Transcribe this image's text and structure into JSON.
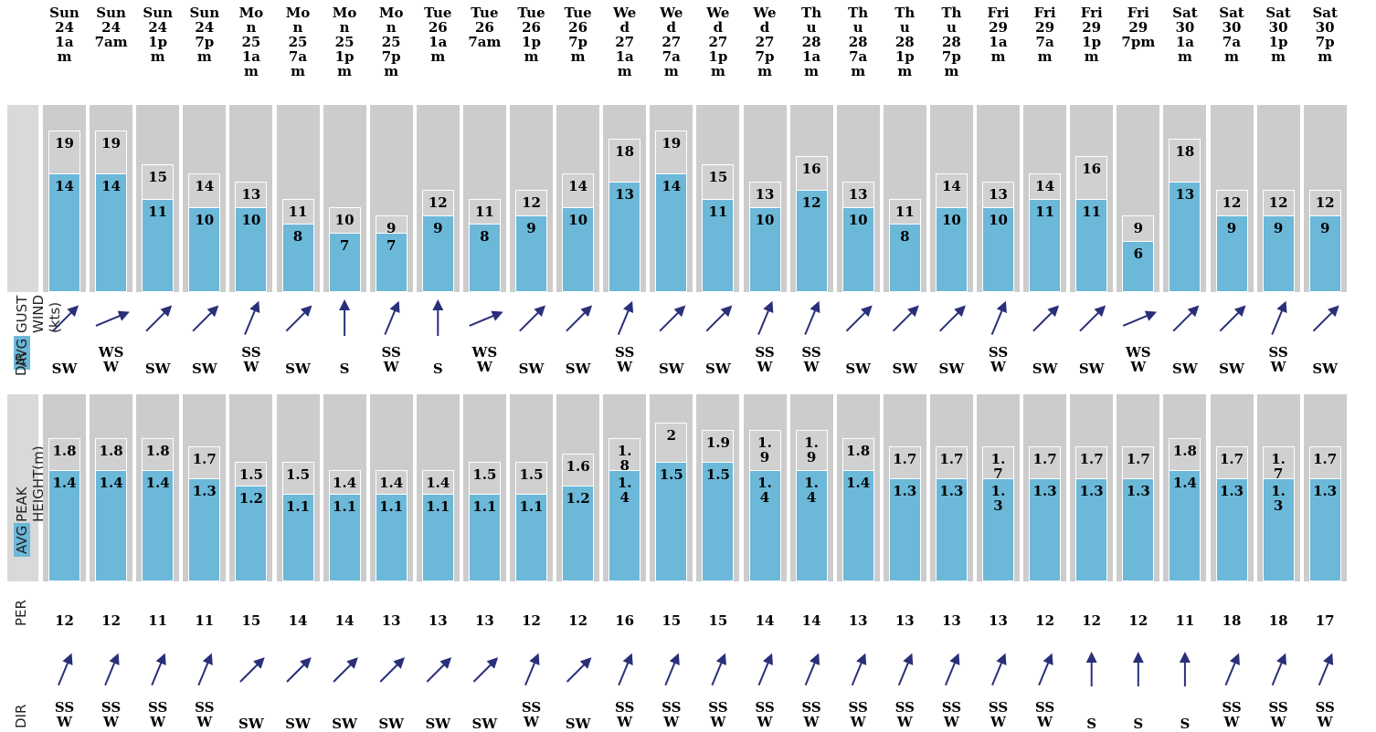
{
  "row_labels": {
    "avg": "AVG",
    "gust_wind": "GUST WIND (kts)",
    "peak_height": "PEAK HEIGHT(m)",
    "dir": "DIR",
    "per": "PER"
  },
  "colors": {
    "avg": "#6bb8d9",
    "max": "#cccccc",
    "arrow": "#2a2f7a"
  },
  "chart_data": [
    {
      "type": "bar",
      "ylabel": "AVG GUST WIND (kts)",
      "categories": [
        "Sun\n24\n1a\nm",
        "Sun\n24\n7am",
        "Sun\n24\n1p\nm",
        "Sun\n24\n7p\nm",
        "Mo\nn\n25\n1a\nm",
        "Mo\nn\n25\n7a\nm",
        "Mo\nn\n25\n1p\nm",
        "Mo\nn\n25\n7p\nm",
        "Tue\n26\n1a\nm",
        "Tue\n26\n7am",
        "Tue\n26\n1p\nm",
        "Tue\n26\n7p\nm",
        "We\nd\n27\n1a\nm",
        "We\nd\n27\n7a\nm",
        "We\nd\n27\n1p\nm",
        "We\nd\n27\n7p\nm",
        "Th\nu\n28\n1a\nm",
        "Th\nu\n28\n7a\nm",
        "Th\nu\n28\n1p\nm",
        "Th\nu\n28\n7p\nm",
        "Fri\n29\n1a\nm",
        "Fri\n29\n7a\nm",
        "Fri\n29\n1p\nm",
        "Fri\n29\n7pm",
        "Sat\n30\n1a\nm",
        "Sat\n30\n7a\nm",
        "Sat\n30\n1p\nm",
        "Sat\n30\n7p\nm"
      ],
      "series": [
        {
          "name": "AVG",
          "values": [
            14,
            14,
            11,
            10,
            10,
            8,
            7,
            7,
            9,
            8,
            9,
            10,
            13,
            14,
            11,
            10,
            12,
            10,
            8,
            10,
            10,
            11,
            11,
            6,
            13,
            9,
            9,
            9
          ],
          "labels": [
            "14",
            "14",
            "11",
            "10",
            "10",
            "8",
            "7",
            "7",
            "9",
            "8",
            "9",
            "10",
            "13",
            "14",
            "11",
            "10",
            "12",
            "10",
            "8",
            "10",
            "10",
            "11",
            "11",
            "6",
            "13",
            "9",
            "9",
            "9"
          ]
        },
        {
          "name": "GUST",
          "values": [
            19,
            19,
            15,
            14,
            13,
            11,
            10,
            9,
            12,
            11,
            12,
            14,
            18,
            19,
            15,
            13,
            16,
            13,
            11,
            14,
            13,
            14,
            16,
            9,
            18,
            12,
            12,
            12
          ],
          "labels": [
            "19",
            "19",
            "15",
            "14",
            "13",
            "11",
            "10",
            "9",
            "12",
            "11",
            "12",
            "14",
            "18",
            "19",
            "15",
            "13",
            "16",
            "13",
            "11",
            "14",
            "13",
            "14",
            "16",
            "9",
            "18",
            "12",
            "12",
            "12"
          ]
        }
      ],
      "directions": [
        {
          "label": "SW",
          "deg": 225
        },
        {
          "label": "WS\nW",
          "deg": 247.5
        },
        {
          "label": "SW",
          "deg": 225
        },
        {
          "label": "SW",
          "deg": 225
        },
        {
          "label": "SS\nW",
          "deg": 202.5
        },
        {
          "label": "SW",
          "deg": 225
        },
        {
          "label": "S",
          "deg": 180
        },
        {
          "label": "SS\nW",
          "deg": 202.5
        },
        {
          "label": "S",
          "deg": 180
        },
        {
          "label": "WS\nW",
          "deg": 247.5
        },
        {
          "label": "SW",
          "deg": 225
        },
        {
          "label": "SW",
          "deg": 225
        },
        {
          "label": "SS\nW",
          "deg": 202.5
        },
        {
          "label": "SW",
          "deg": 225
        },
        {
          "label": "SW",
          "deg": 225
        },
        {
          "label": "SS\nW",
          "deg": 202.5
        },
        {
          "label": "SS\nW",
          "deg": 202.5
        },
        {
          "label": "SW",
          "deg": 225
        },
        {
          "label": "SW",
          "deg": 225
        },
        {
          "label": "SW",
          "deg": 225
        },
        {
          "label": "SS\nW",
          "deg": 202.5
        },
        {
          "label": "SW",
          "deg": 225
        },
        {
          "label": "SW",
          "deg": 225
        },
        {
          "label": "WS\nW",
          "deg": 247.5
        },
        {
          "label": "SW",
          "deg": 225
        },
        {
          "label": "SW",
          "deg": 225
        },
        {
          "label": "SS\nW",
          "deg": 202.5
        },
        {
          "label": "SW",
          "deg": 225
        }
      ]
    },
    {
      "type": "bar",
      "ylabel": "AVG PEAK HEIGHT(m)",
      "categories": [
        "Sun\n24\n1a\nm",
        "Sun\n24\n7am",
        "Sun\n24\n1p\nm",
        "Sun\n24\n7p\nm",
        "Mo\nn\n25\n1a\nm",
        "Mo\nn\n25\n7a\nm",
        "Mo\nn\n25\n1p\nm",
        "Mo\nn\n25\n7p\nm",
        "Tue\n26\n1a\nm",
        "Tue\n26\n7am",
        "Tue\n26\n1p\nm",
        "Tue\n26\n7p\nm",
        "We\nd\n27\n1a\nm",
        "We\nd\n27\n7a\nm",
        "We\nd\n27\n1p\nm",
        "We\nd\n27\n7p\nm",
        "Th\nu\n28\n1a\nm",
        "Th\nu\n28\n7a\nm",
        "Th\nu\n28\n1p\nm",
        "Th\nu\n28\n7p\nm",
        "Fri\n29\n1a\nm",
        "Fri\n29\n7a\nm",
        "Fri\n29\n1p\nm",
        "Fri\n29\n7pm",
        "Sat\n30\n1a\nm",
        "Sat\n30\n7a\nm",
        "Sat\n30\n1p\nm",
        "Sat\n30\n7p\nm"
      ],
      "series": [
        {
          "name": "AVG",
          "values": [
            1.4,
            1.4,
            1.4,
            1.3,
            1.2,
            1.1,
            1.1,
            1.1,
            1.1,
            1.1,
            1.1,
            1.2,
            1.4,
            1.5,
            1.5,
            1.4,
            1.4,
            1.4,
            1.3,
            1.3,
            1.3,
            1.3,
            1.3,
            1.3,
            1.4,
            1.3,
            1.3,
            1.3
          ],
          "labels": [
            "1.4",
            "1.4",
            "1.4",
            "1.3",
            "1.2",
            "1.1",
            "1.1",
            "1.1",
            "1.1",
            "1.1",
            "1.1",
            "1.2",
            "1.\n4",
            "1.5",
            "1.5",
            "1.\n4",
            "1.\n4",
            "1.4",
            "1.3",
            "1.3",
            "1.\n3",
            "1.3",
            "1.3",
            "1.3",
            "1.4",
            "1.3",
            "1.\n3",
            "1.3"
          ]
        },
        {
          "name": "PEAK",
          "values": [
            1.8,
            1.8,
            1.8,
            1.7,
            1.5,
            1.5,
            1.4,
            1.4,
            1.4,
            1.5,
            1.5,
            1.6,
            1.8,
            2,
            1.9,
            1.9,
            1.9,
            1.8,
            1.7,
            1.7,
            1.7,
            1.7,
            1.7,
            1.7,
            1.8,
            1.7,
            1.7,
            1.7
          ],
          "labels": [
            "1.8",
            "1.8",
            "1.8",
            "1.7",
            "1.5",
            "1.5",
            "1.4",
            "1.4",
            "1.4",
            "1.5",
            "1.5",
            "1.6",
            "1.\n8",
            "2",
            "1.9",
            "1.\n9",
            "1.\n9",
            "1.8",
            "1.7",
            "1.7",
            "1.\n7",
            "1.7",
            "1.7",
            "1.7",
            "1.8",
            "1.7",
            "1.\n7",
            "1.7"
          ]
        }
      ],
      "periods": [
        "12",
        "12",
        "11",
        "11",
        "15",
        "14",
        "14",
        "13",
        "13",
        "13",
        "12",
        "12",
        "16",
        "15",
        "15",
        "14",
        "14",
        "13",
        "13",
        "13",
        "13",
        "12",
        "12",
        "12",
        "11",
        "18",
        "18",
        "17"
      ],
      "directions": [
        {
          "label": "SS\nW",
          "deg": 202.5
        },
        {
          "label": "SS\nW",
          "deg": 202.5
        },
        {
          "label": "SS\nW",
          "deg": 202.5
        },
        {
          "label": "SS\nW",
          "deg": 202.5
        },
        {
          "label": "SW",
          "deg": 225
        },
        {
          "label": "SW",
          "deg": 225
        },
        {
          "label": "SW",
          "deg": 225
        },
        {
          "label": "SW",
          "deg": 225
        },
        {
          "label": "SW",
          "deg": 225
        },
        {
          "label": "SW",
          "deg": 225
        },
        {
          "label": "SS\nW",
          "deg": 202.5
        },
        {
          "label": "SW",
          "deg": 225
        },
        {
          "label": "SS\nW",
          "deg": 202.5
        },
        {
          "label": "SS\nW",
          "deg": 202.5
        },
        {
          "label": "SS\nW",
          "deg": 202.5
        },
        {
          "label": "SS\nW",
          "deg": 202.5
        },
        {
          "label": "SS\nW",
          "deg": 202.5
        },
        {
          "label": "SS\nW",
          "deg": 202.5
        },
        {
          "label": "SS\nW",
          "deg": 202.5
        },
        {
          "label": "SS\nW",
          "deg": 202.5
        },
        {
          "label": "SS\nW",
          "deg": 202.5
        },
        {
          "label": "SS\nW",
          "deg": 202.5
        },
        {
          "label": "S",
          "deg": 180
        },
        {
          "label": "S",
          "deg": 180
        },
        {
          "label": "S",
          "deg": 180
        },
        {
          "label": "SS\nW",
          "deg": 202.5
        },
        {
          "label": "SS\nW",
          "deg": 202.5
        },
        {
          "label": "SS\nW",
          "deg": 202.5
        }
      ]
    }
  ]
}
